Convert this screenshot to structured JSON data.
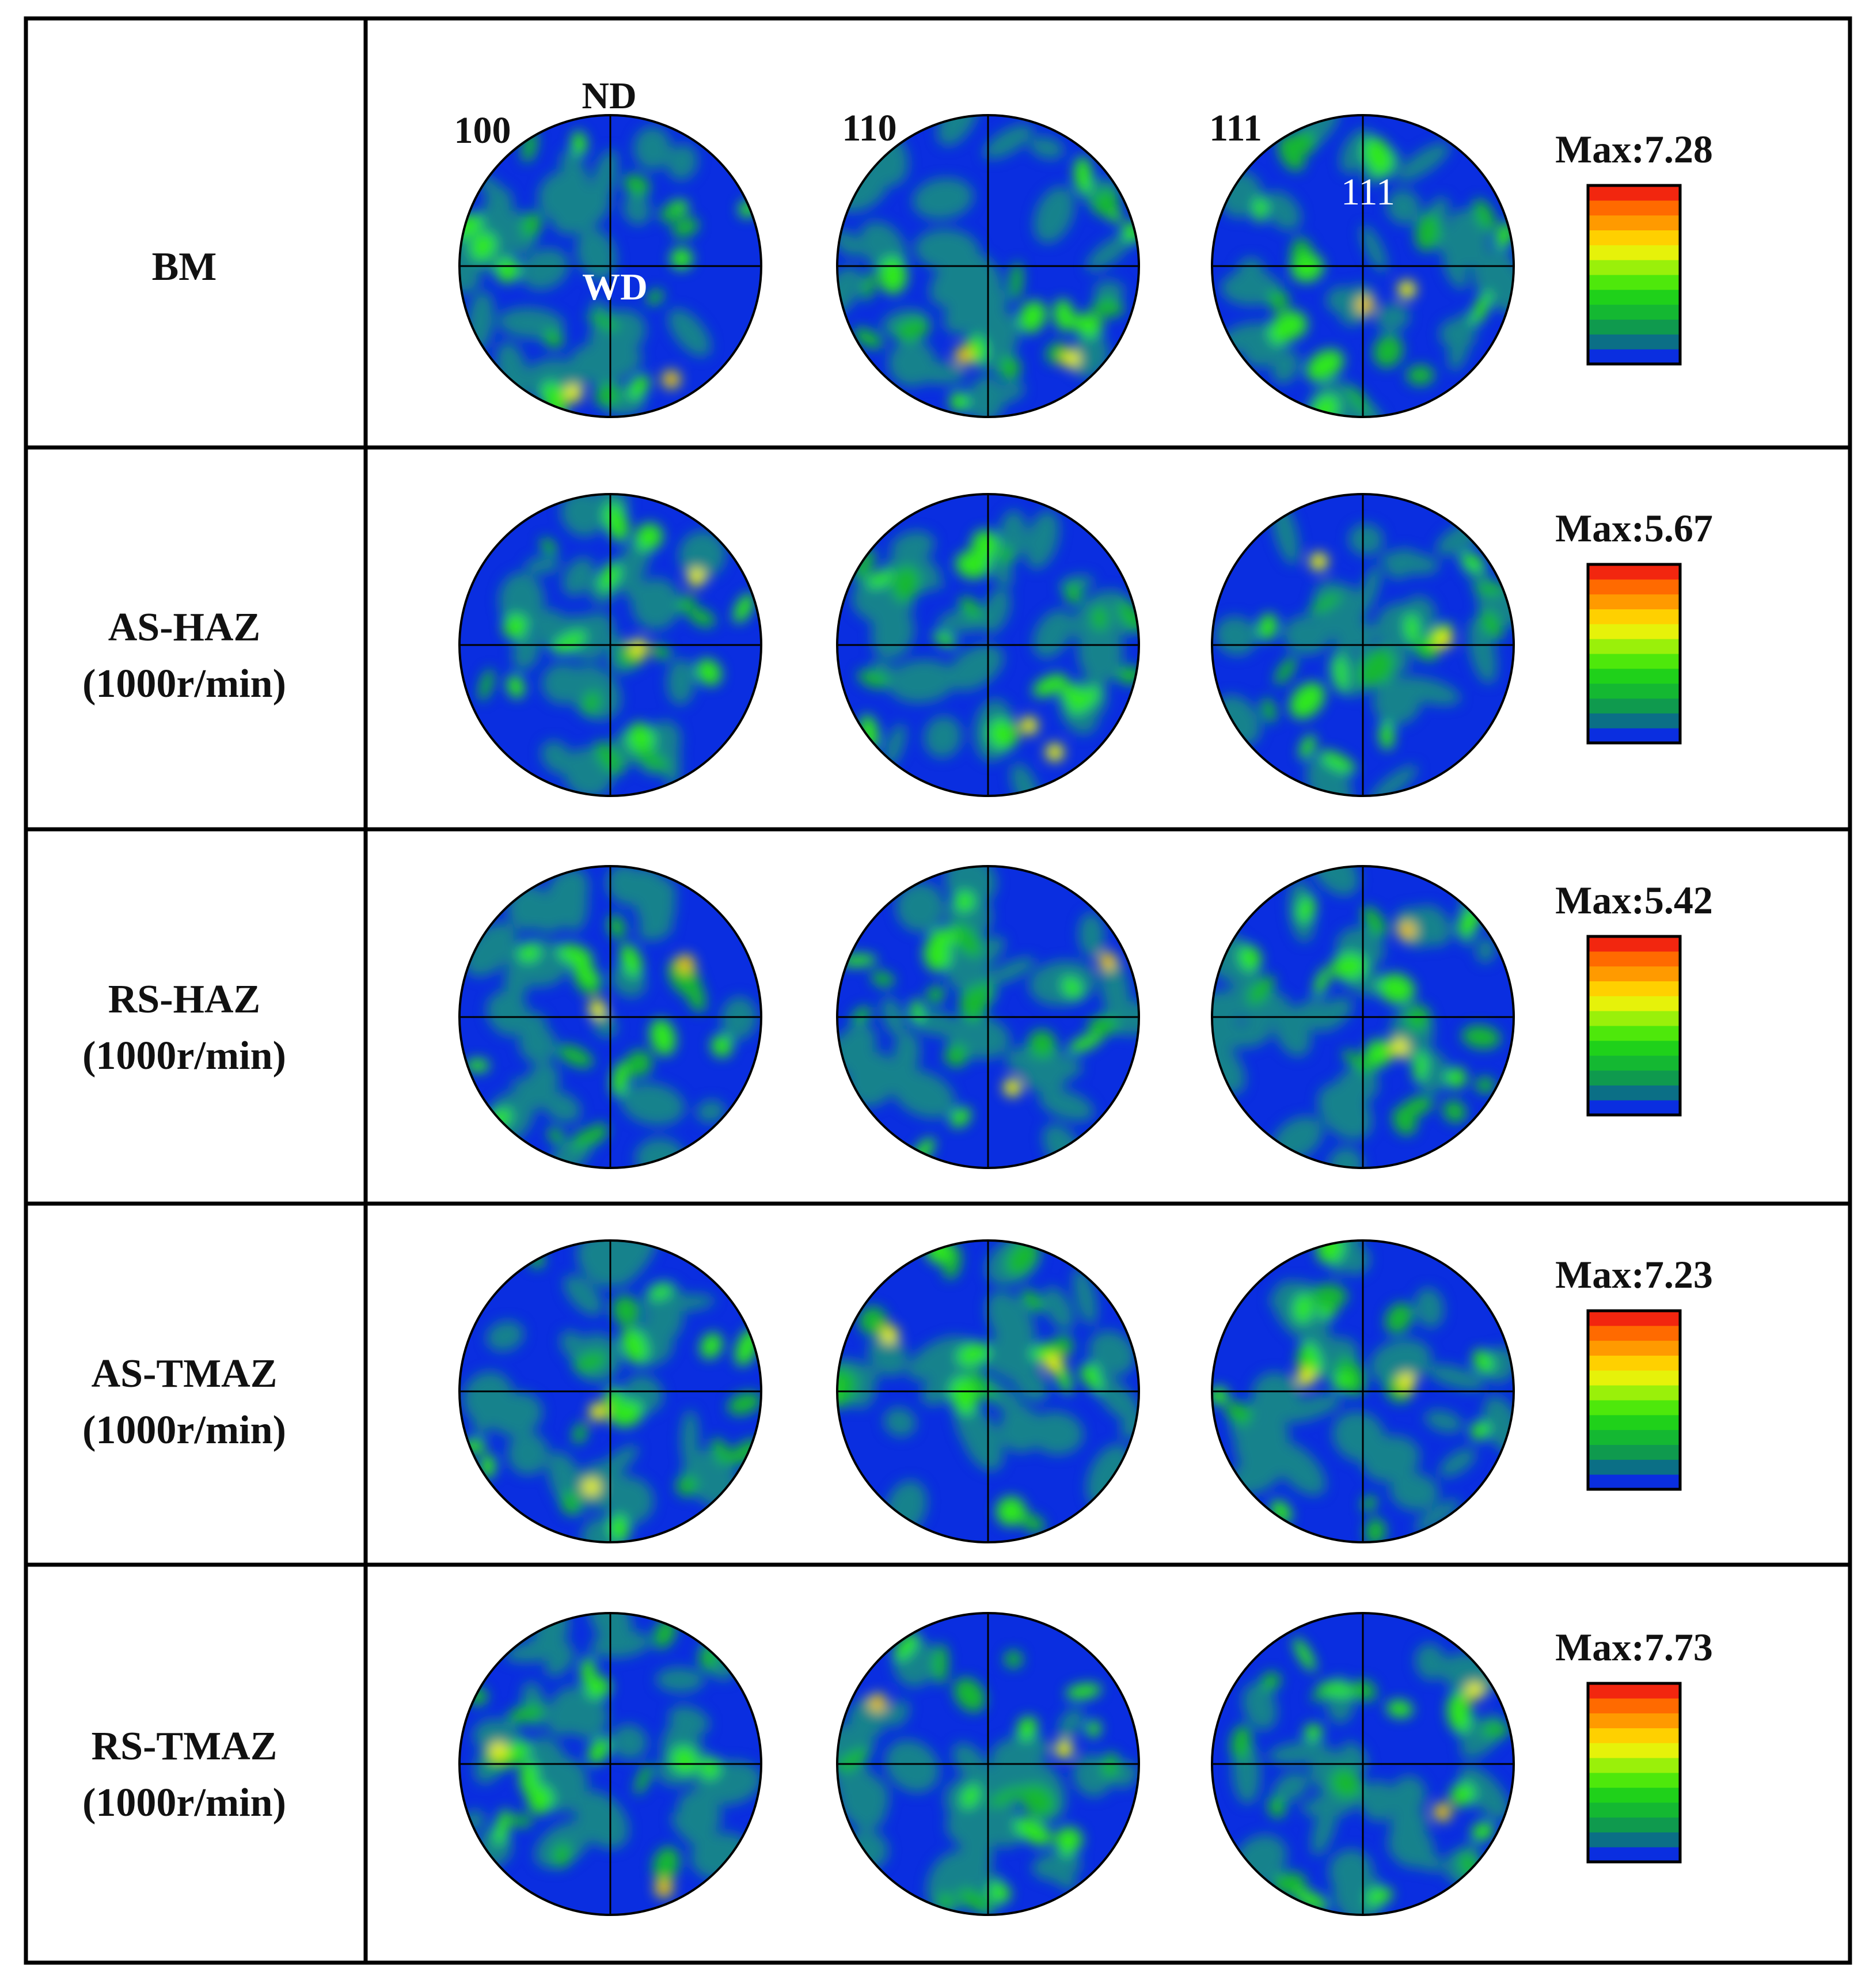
{
  "header": {
    "pole_labels": [
      "100",
      "110",
      "111"
    ],
    "nd_label": "ND",
    "wd_label": "WD",
    "inner_111_label": "111"
  },
  "rows": [
    {
      "label_line1": "BM",
      "label_line2": "",
      "max_text": "Max:7.28",
      "max_value": 7.28
    },
    {
      "label_line1": "AS-HAZ",
      "label_line2": "(1000r/min)",
      "max_text": "Max:5.67",
      "max_value": 5.67
    },
    {
      "label_line1": "RS-HAZ",
      "label_line2": "(1000r/min)",
      "max_text": "Max:5.42",
      "max_value": 5.42
    },
    {
      "label_line1": "AS-TMAZ",
      "label_line2": "(1000r/min)",
      "max_text": "Max:7.23",
      "max_value": 7.23
    },
    {
      "label_line1": "RS-TMAZ",
      "label_line2": "(1000r/min)",
      "max_text": "Max:7.73",
      "max_value": 7.73
    }
  ],
  "colorscale": {
    "colors": [
      "#0a2ee0",
      "#0b6f86",
      "#0f9a4e",
      "#14b832",
      "#1fd11a",
      "#4ee80b",
      "#9af00a",
      "#e6f20a",
      "#ffd000",
      "#ff9a00",
      "#ff6a00",
      "#f2260f"
    ]
  },
  "map_colors": {
    "background": "#0a2ee0",
    "teal": "#14828c",
    "green_dark": "#14b832",
    "green": "#2ee81a",
    "yellow": "#e6f20a",
    "orange": "#ff8a00",
    "red": "#e8200a"
  }
}
